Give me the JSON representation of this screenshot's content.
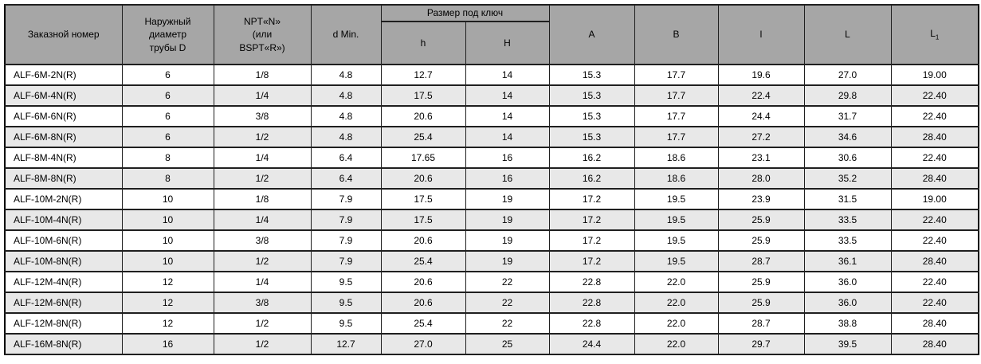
{
  "table": {
    "header": {
      "order_number": "Заказной номер",
      "outer_diameter": "Наружный\nдиаметр\nтрубы D",
      "thread": "NPT«N»\n(или\nBSPT«R»)",
      "d_min": "d Min.",
      "wrench_group": "Размер под ключ",
      "h_small": "h",
      "h_big": "H",
      "a": "A",
      "b": "B",
      "l_small": "l",
      "l_big": "L",
      "l1_base": "L",
      "l1_sub": "1"
    },
    "colors": {
      "header_bg": "#a6a6a6",
      "stripe_bg": "#e8e8e8",
      "row_bg": "#ffffff",
      "border": "#1f1f1f"
    },
    "rows": [
      [
        "ALF-6M-2N(R)",
        "6",
        "1/8",
        "4.8",
        "12.7",
        "14",
        "15.3",
        "17.7",
        "19.6",
        "27.0",
        "19.00"
      ],
      [
        "ALF-6M-4N(R)",
        "6",
        "1/4",
        "4.8",
        "17.5",
        "14",
        "15.3",
        "17.7",
        "22.4",
        "29.8",
        "22.40"
      ],
      [
        "ALF-6M-6N(R)",
        "6",
        "3/8",
        "4.8",
        "20.6",
        "14",
        "15.3",
        "17.7",
        "24.4",
        "31.7",
        "22.40"
      ],
      [
        "ALF-6M-8N(R)",
        "6",
        "1/2",
        "4.8",
        "25.4",
        "14",
        "15.3",
        "17.7",
        "27.2",
        "34.6",
        "28.40"
      ],
      [
        "ALF-8M-4N(R)",
        "8",
        "1/4",
        "6.4",
        "17.65",
        "16",
        "16.2",
        "18.6",
        "23.1",
        "30.6",
        "22.40"
      ],
      [
        "ALF-8M-8N(R)",
        "8",
        "1/2",
        "6.4",
        "20.6",
        "16",
        "16.2",
        "18.6",
        "28.0",
        "35.2",
        "28.40"
      ],
      [
        "ALF-10M-2N(R)",
        "10",
        "1/8",
        "7.9",
        "17.5",
        "19",
        "17.2",
        "19.5",
        "23.9",
        "31.5",
        "19.00"
      ],
      [
        "ALF-10M-4N(R)",
        "10",
        "1/4",
        "7.9",
        "17.5",
        "19",
        "17.2",
        "19.5",
        "25.9",
        "33.5",
        "22.40"
      ],
      [
        "ALF-10M-6N(R)",
        "10",
        "3/8",
        "7.9",
        "20.6",
        "19",
        "17.2",
        "19.5",
        "25.9",
        "33.5",
        "22.40"
      ],
      [
        "ALF-10M-8N(R)",
        "10",
        "1/2",
        "7.9",
        "25.4",
        "19",
        "17.2",
        "19.5",
        "28.7",
        "36.1",
        "28.40"
      ],
      [
        "ALF-12M-4N(R)",
        "12",
        "1/4",
        "9.5",
        "20.6",
        "22",
        "22.8",
        "22.0",
        "25.9",
        "36.0",
        "22.40"
      ],
      [
        "ALF-12M-6N(R)",
        "12",
        "3/8",
        "9.5",
        "20.6",
        "22",
        "22.8",
        "22.0",
        "25.9",
        "36.0",
        "22.40"
      ],
      [
        "ALF-12M-8N(R)",
        "12",
        "1/2",
        "9.5",
        "25.4",
        "22",
        "22.8",
        "22.0",
        "28.7",
        "38.8",
        "28.40"
      ],
      [
        "ALF-16M-8N(R)",
        "16",
        "1/2",
        "12.7",
        "27.0",
        "25",
        "24.4",
        "22.0",
        "29.7",
        "39.5",
        "28.40"
      ]
    ]
  }
}
